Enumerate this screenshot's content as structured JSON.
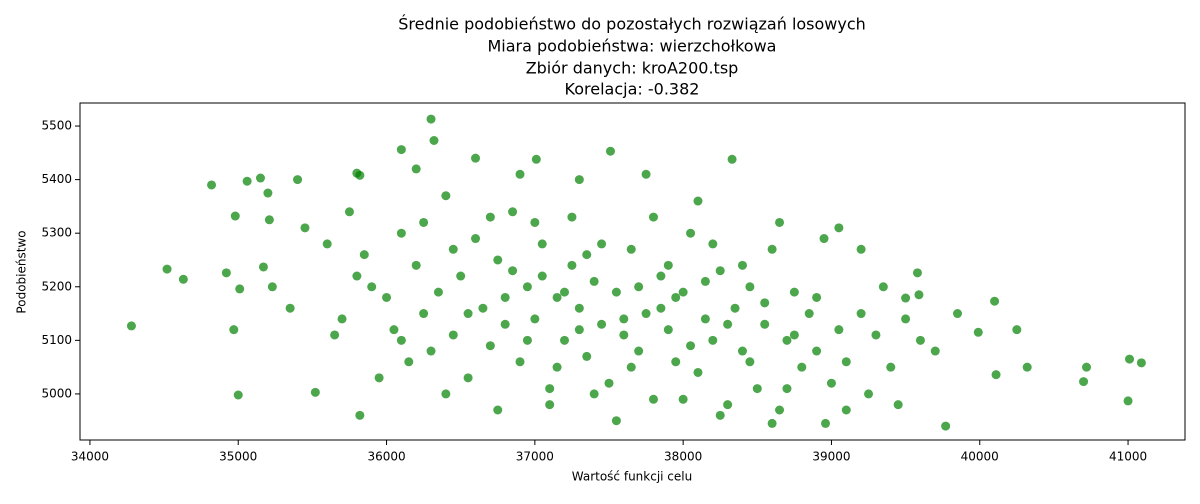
{
  "chart_data": {
    "type": "scatter",
    "title": [
      "Średnie podobieństwo do pozostałych rozwiązań losowych",
      "Miara podobieństwa: wierzchołkowa",
      "Zbiór danych: kroA200.tsp",
      "Korelacja: -0.382"
    ],
    "xlabel": "Wartość funkcji celu",
    "ylabel": "Podobieństwo",
    "color": "#008000",
    "xlim": [
      33933,
      41384
    ],
    "ylim": [
      4914,
      5543
    ],
    "xticks": [
      34000,
      35000,
      36000,
      37000,
      38000,
      39000,
      40000,
      41000
    ],
    "yticks": [
      5000,
      5100,
      5200,
      5300,
      5400,
      5500
    ],
    "grid": false,
    "x": [
      34280,
      34520,
      34630,
      34820,
      34920,
      34970,
      34980,
      35000,
      35010,
      35060,
      35150,
      35200,
      35210,
      35170,
      35230,
      35400,
      35520,
      35800,
      35820,
      35820,
      36300,
      36320,
      36100,
      37510,
      37010,
      38330,
      41010,
      41090,
      41000,
      40700,
      40720,
      40320,
      40250,
      40100,
      39990,
      40110,
      39770,
      39590,
      39580,
      38960,
      39500,
      35350,
      35450,
      35600,
      35700,
      35750,
      35850,
      35900,
      35950,
      36000,
      36050,
      36100,
      36150,
      36200,
      36250,
      36300,
      36350,
      36400,
      36450,
      36500,
      36550,
      36600,
      36650,
      36700,
      36750,
      36800,
      36850,
      36900,
      36950,
      37000,
      37050,
      37100,
      37150,
      37200,
      37250,
      37300,
      37350,
      37400,
      37450,
      37500,
      37550,
      37600,
      37650,
      37700,
      37750,
      37800,
      37850,
      37900,
      37950,
      38000,
      38050,
      38100,
      38150,
      38200,
      38250,
      38300,
      38350,
      38400,
      38450,
      38500,
      38550,
      38600,
      38650,
      38700,
      38750,
      38800,
      38850,
      38900,
      38950,
      39000,
      39050,
      39100,
      39200,
      39250,
      39300,
      39400,
      39450,
      39700,
      39850,
      36200,
      36600,
      36900,
      37300,
      37750,
      38100,
      38650,
      39050,
      39200,
      36400,
      36750,
      37100,
      37550,
      38250,
      38600,
      39100,
      37000,
      37250,
      37800,
      38400,
      36800,
      37050,
      37300,
      37450,
      37650,
      37950,
      38150,
      38750,
      36450,
      36700,
      36950,
      37200,
      37600,
      37900,
      38300,
      38550,
      36100,
      35650,
      35800,
      36550,
      37150,
      37700,
      38050,
      38450,
      38900,
      39350,
      39600,
      36250,
      37400,
      38000,
      38700,
      37350,
      36850,
      37850,
      38200,
      39500
    ],
    "values": [
      5127,
      5233,
      5214,
      5390,
      5226,
      5120,
      5332,
      4998,
      5196,
      5397,
      5403,
      5375,
      5325,
      5237,
      5200,
      5400,
      5003,
      5412,
      5408,
      4960,
      5513,
      5473,
      5456,
      5453,
      5438,
      5438,
      5065,
      5058,
      4987,
      5023,
      5050,
      5050,
      5120,
      5173,
      5115,
      5036,
      4940,
      5185,
      5226,
      4945,
      5179,
      5160,
      5310,
      5280,
      5140,
      5340,
      5260,
      5200,
      5030,
      5180,
      5120,
      5300,
      5060,
      5240,
      5150,
      5080,
      5190,
      5370,
      5110,
      5220,
      5030,
      5290,
      5160,
      5090,
      5250,
      5130,
      5340,
      5060,
      5200,
      5140,
      5280,
      5010,
      5180,
      5100,
      5240,
      5160,
      5070,
      5210,
      5130,
      5020,
      5190,
      5110,
      5270,
      5080,
      5150,
      4990,
      5220,
      5120,
      5060,
      5190,
      5300,
      5040,
      5140,
      5100,
      5230,
      4980,
      5160,
      5080,
      5200,
      5010,
      5130,
      5270,
      4970,
      5100,
      5190,
      5050,
      5150,
      5080,
      5290,
      5020,
      5120,
      5060,
      5150,
      5000,
      5110,
      5050,
      4980,
      5080,
      5150,
      5420,
      5440,
      5410,
      5400,
      5410,
      5360,
      5320,
      5310,
      5270,
      5000,
      4970,
      4980,
      4950,
      4960,
      4945,
      4970,
      5320,
      5330,
      5330,
      5240,
      5180,
      5220,
      5120,
      5280,
      5050,
      5180,
      5210,
      5110,
      5270,
      5330,
      5100,
      5190,
      5140,
      5240,
      5130,
      5170,
      5100,
      5110,
      5220,
      5150,
      5050,
      5200,
      5090,
      5060,
      5180,
      5200,
      5100,
      5320,
      5000,
      4990,
      5010,
      5260,
      5230,
      5160,
      5280,
      5140
    ]
  }
}
